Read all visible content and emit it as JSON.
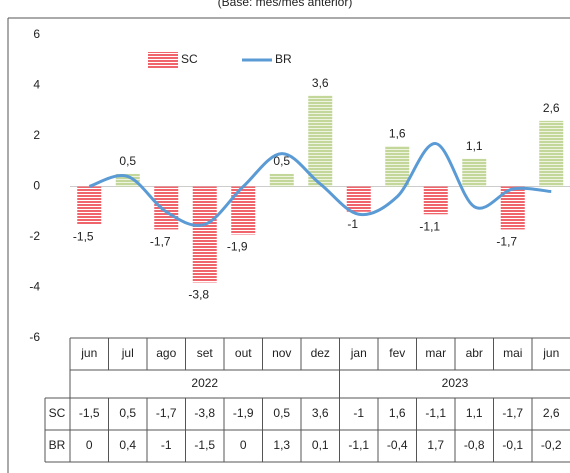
{
  "chart_data": {
    "type": "bar_line",
    "subtitle": "(Base: mês/mês anterior)",
    "categories": [
      "jun",
      "jul",
      "ago",
      "set",
      "out",
      "nov",
      "dez",
      "jan",
      "fev",
      "mar",
      "abr",
      "mai",
      "jun"
    ],
    "groups": [
      {
        "label": "2022",
        "span": 7
      },
      {
        "label": "2023",
        "span": 6
      }
    ],
    "series": [
      {
        "name": "SC",
        "type": "bar",
        "color": "#f0646c",
        "positive_color": "#c4d79b",
        "values": [
          -1.5,
          0.5,
          -1.7,
          -3.8,
          -1.9,
          0.5,
          3.6,
          -1,
          1.6,
          -1.1,
          1.1,
          -1.7,
          2.6
        ],
        "value_labels": [
          "-1,5",
          "0,5",
          "-1,7",
          "-3,8",
          "-1,9",
          "0,5",
          "3,6",
          "-1",
          "1,6",
          "-1,1",
          "1,1",
          "-1,7",
          "2,6"
        ]
      },
      {
        "name": "BR",
        "type": "line",
        "color": "#5b9bd5",
        "values": [
          0,
          0.4,
          -1,
          -1.5,
          0,
          1.3,
          0.1,
          -1.1,
          -0.4,
          1.7,
          -0.8,
          -0.1,
          -0.2
        ],
        "value_labels": [
          "0",
          "0,4",
          "-1",
          "-1,5",
          "0",
          "1,3",
          "0,1",
          "-1,1",
          "-0,4",
          "1,7",
          "-0,8",
          "-0,1",
          "-0,2"
        ]
      }
    ],
    "ylim": [
      -6,
      6
    ],
    "yticks": [
      -6,
      -4,
      -2,
      0,
      2,
      4,
      6
    ],
    "legend": "top"
  }
}
